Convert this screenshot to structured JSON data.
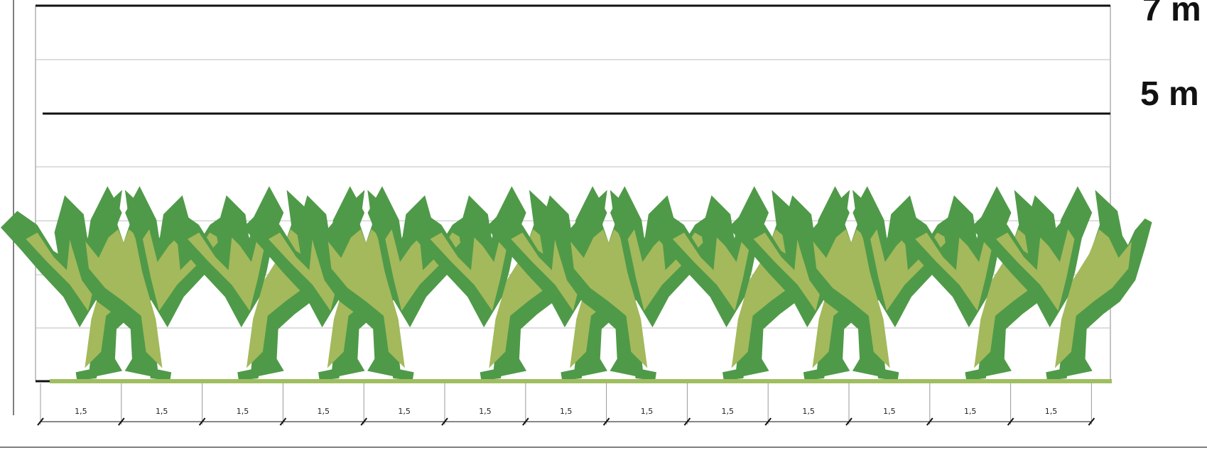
{
  "levels": [
    {
      "label": "7 m",
      "value": 7
    },
    {
      "label": "5 m",
      "value": 5
    }
  ],
  "spacing": {
    "unit_label": "1,5",
    "count": 13
  },
  "colors": {
    "foliage_stroke": "#4f9a48",
    "foliage_fill": "#a3b95c",
    "ground": "#9fbe5f",
    "major_line": "#111111",
    "minor_line": "#bcbcbc"
  },
  "tree_icon": "stylized-deciduous-tree-icon"
}
